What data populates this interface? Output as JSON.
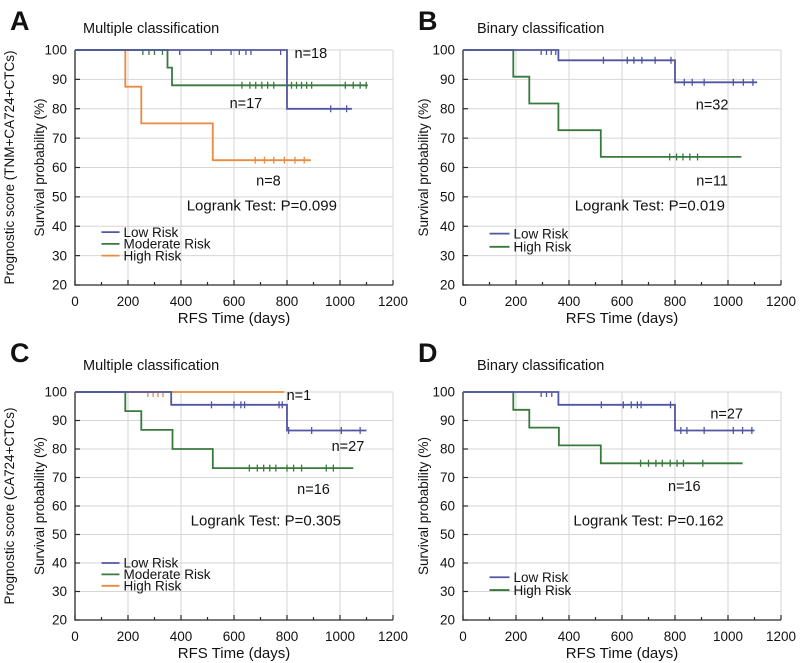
{
  "figure": {
    "background": "#ffffff",
    "colors": {
      "blue": "#5056a2",
      "green": "#38793c",
      "orange": "#e98b40",
      "grid": "#d6d6d6",
      "axis": "#2a2a2a",
      "text": "#121212"
    },
    "x_axis": {
      "label": "RFS Time (days)",
      "min": 0,
      "max": 1200,
      "major_tick_step": 200,
      "minor_tick_step": 100,
      "grid": true
    },
    "y_axis": {
      "label": "Survival probability (%)",
      "min": 20,
      "max": 100,
      "major_tick_step": 10,
      "grid": true
    }
  },
  "chart_data": [
    {
      "id": "A",
      "letter": "A",
      "title": "Multiple classification",
      "type": "km_step_line",
      "outer_ylabel": "Prognostic score (TNM+CA724+CTCs)",
      "logrank_label": "Logrank Test: P=0.099",
      "logrank_pos": [
        705,
        47
      ],
      "legend": {
        "x": 100,
        "rows_y": [
          38,
          34,
          30
        ]
      },
      "series": [
        {
          "name": "Low Risk",
          "color_key": "blue",
          "n_label": "n=18",
          "n_pos": [
            890,
            99
          ],
          "steps": [
            [
              0,
              100
            ],
            [
              800,
              100
            ],
            [
              800,
              80
            ],
            [
              1045,
              80
            ]
          ],
          "censors": [
            [
              395,
              100
            ],
            [
              514,
              100
            ],
            [
              589,
              100
            ],
            [
              620,
              100
            ],
            [
              645,
              100
            ],
            [
              664,
              100
            ],
            [
              776,
              100
            ],
            [
              965,
              80
            ],
            [
              1025,
              80
            ]
          ]
        },
        {
          "name": "Moderate Risk",
          "color_key": "green",
          "n_label": "n=17",
          "n_pos": [
            645,
            82
          ],
          "steps": [
            [
              0,
              100
            ],
            [
              349,
              100
            ],
            [
              349,
              94
            ],
            [
              366,
              94
            ],
            [
              366,
              88
            ],
            [
              1105,
              88
            ]
          ],
          "censors": [
            [
              256,
              100
            ],
            [
              279,
              100
            ],
            [
              300,
              100
            ],
            [
              330,
              100
            ],
            [
              630,
              88
            ],
            [
              660,
              88
            ],
            [
              682,
              88
            ],
            [
              705,
              88
            ],
            [
              727,
              88
            ],
            [
              750,
              88
            ],
            [
              817,
              88
            ],
            [
              836,
              88
            ],
            [
              855,
              88
            ],
            [
              874,
              88
            ],
            [
              893,
              88
            ],
            [
              1020,
              88
            ],
            [
              1050,
              88
            ],
            [
              1076,
              88
            ],
            [
              1099,
              88
            ]
          ]
        },
        {
          "name": "High Risk",
          "color_key": "orange",
          "n_label": "n=8",
          "n_pos": [
            730,
            55.5
          ],
          "steps": [
            [
              0,
              100
            ],
            [
              190,
              100
            ],
            [
              190,
              87.5
            ],
            [
              250,
              87.5
            ],
            [
              250,
              75
            ],
            [
              520,
              75
            ],
            [
              520,
              62.5
            ],
            [
              890,
              62.5
            ]
          ],
          "censors": [
            [
              680,
              62.5
            ],
            [
              715,
              62.5
            ],
            [
              750,
              62.5
            ],
            [
              790,
              62.5
            ],
            [
              830,
              62.5
            ],
            [
              865,
              62.5
            ]
          ]
        }
      ]
    },
    {
      "id": "B",
      "letter": "B",
      "title": "Binary classification",
      "type": "km_step_line",
      "logrank_label": "Logrank Test: P=0.019",
      "logrank_pos": [
        705,
        47
      ],
      "legend": {
        "x": 100,
        "rows_y": [
          37.5,
          33
        ]
      },
      "series": [
        {
          "name": "Low Risk",
          "color_key": "blue",
          "n_label": "n=32",
          "n_pos": [
            940,
            81.5
          ],
          "steps": [
            [
              0,
              100
            ],
            [
              360,
              100
            ],
            [
              360,
              96.5
            ],
            [
              800,
              96.5
            ],
            [
              800,
              89
            ],
            [
              1110,
              89
            ]
          ],
          "censors": [
            [
              295,
              100
            ],
            [
              315,
              100
            ],
            [
              333,
              100
            ],
            [
              350,
              100
            ],
            [
              530,
              96.5
            ],
            [
              620,
              96.5
            ],
            [
              645,
              96.5
            ],
            [
              675,
              96.5
            ],
            [
              725,
              96.5
            ],
            [
              785,
              96.5
            ],
            [
              835,
              89
            ],
            [
              865,
              89
            ],
            [
              910,
              89
            ],
            [
              1020,
              89
            ],
            [
              1058,
              89
            ],
            [
              1094,
              89
            ]
          ]
        },
        {
          "name": "High Risk",
          "color_key": "green",
          "n_label": "n=11",
          "n_pos": [
            940,
            55.5
          ],
          "steps": [
            [
              0,
              100
            ],
            [
              190,
              100
            ],
            [
              190,
              90.9
            ],
            [
              250,
              90.9
            ],
            [
              250,
              81.8
            ],
            [
              360,
              81.8
            ],
            [
              360,
              72.7
            ],
            [
              520,
              72.7
            ],
            [
              520,
              63.6
            ],
            [
              1050,
              63.6
            ]
          ],
          "censors": [
            [
              780,
              63.6
            ],
            [
              806,
              63.6
            ],
            [
              830,
              63.6
            ],
            [
              856,
              63.6
            ],
            [
              885,
              63.6
            ]
          ]
        }
      ]
    },
    {
      "id": "C",
      "letter": "C",
      "title": "Multiple classification",
      "type": "km_step_line",
      "outer_ylabel": "Prognostic score (CA724+CTCs)",
      "logrank_label": "Logrank Test: P=0.305",
      "logrank_pos": [
        720,
        55
      ],
      "legend": {
        "x": 100,
        "rows_y": [
          40,
          36,
          32
        ]
      },
      "series": [
        {
          "name": "Low Risk",
          "color_key": "blue",
          "n_label": "n=27",
          "n_pos": [
            1030,
            81
          ],
          "steps": [
            [
              0,
              100
            ],
            [
              363,
              100
            ],
            [
              363,
              95.5
            ],
            [
              800,
              95.5
            ],
            [
              800,
              86.5
            ],
            [
              1100,
              86.5
            ]
          ],
          "censors": [
            [
              515,
              95.5
            ],
            [
              600,
              95.5
            ],
            [
              626,
              95.5
            ],
            [
              640,
              95.5
            ],
            [
              770,
              95.5
            ],
            [
              782,
              95.5
            ],
            [
              806,
              86.5
            ],
            [
              893,
              86.5
            ],
            [
              1005,
              86.5
            ],
            [
              1076,
              86.5
            ]
          ]
        },
        {
          "name": "Moderate Risk",
          "color_key": "green",
          "n_label": "n=16",
          "n_pos": [
            900,
            66
          ],
          "steps": [
            [
              0,
              100
            ],
            [
              190,
              100
            ],
            [
              190,
              93.3
            ],
            [
              250,
              93.3
            ],
            [
              250,
              86.7
            ],
            [
              368,
              86.7
            ],
            [
              368,
              80
            ],
            [
              520,
              80
            ],
            [
              520,
              73.3
            ],
            [
              1050,
              73.3
            ]
          ],
          "censors": [
            [
              658,
              73.3
            ],
            [
              688,
              73.3
            ],
            [
              712,
              73.3
            ],
            [
              735,
              73.3
            ],
            [
              758,
              73.3
            ],
            [
              800,
              73.3
            ],
            [
              825,
              73.3
            ],
            [
              855,
              73.3
            ],
            [
              948,
              73.3
            ],
            [
              975,
              73.3
            ]
          ]
        },
        {
          "name": "High Risk",
          "color_key": "orange",
          "n_label": "n=1",
          "n_pos": [
            845,
            99
          ],
          "steps": [
            [
              0,
              100
            ],
            [
              790,
              100
            ]
          ],
          "censors": [
            [
              275,
              100
            ],
            [
              295,
              100
            ],
            [
              313,
              100
            ],
            [
              332,
              100
            ]
          ]
        }
      ]
    },
    {
      "id": "D",
      "letter": "D",
      "title": "Binary classification",
      "type": "km_step_line",
      "logrank_label": "Logrank Test: P=0.162",
      "logrank_pos": [
        700,
        55
      ],
      "legend": {
        "x": 100,
        "rows_y": [
          35,
          30.5
        ]
      },
      "series": [
        {
          "name": "Low Risk",
          "color_key": "blue",
          "n_label": "n=27",
          "n_pos": [
            995,
            92.5
          ],
          "steps": [
            [
              0,
              100
            ],
            [
              360,
              100
            ],
            [
              360,
              95.5
            ],
            [
              800,
              95.5
            ],
            [
              800,
              86.5
            ],
            [
              1100,
              86.5
            ]
          ],
          "censors": [
            [
              295,
              100
            ],
            [
              315,
              100
            ],
            [
              335,
              100
            ],
            [
              522,
              95.5
            ],
            [
              605,
              95.5
            ],
            [
              635,
              95.5
            ],
            [
              658,
              95.5
            ],
            [
              672,
              95.5
            ],
            [
              783,
              95.5
            ],
            [
              822,
              86.5
            ],
            [
              845,
              86.5
            ],
            [
              910,
              86.5
            ],
            [
              1020,
              86.5
            ],
            [
              1055,
              86.5
            ],
            [
              1090,
              86.5
            ]
          ]
        },
        {
          "name": "High Risk",
          "color_key": "green",
          "n_label": "n=16",
          "n_pos": [
            835,
            67
          ],
          "steps": [
            [
              0,
              100
            ],
            [
              190,
              100
            ],
            [
              190,
              93.75
            ],
            [
              250,
              93.75
            ],
            [
              250,
              87.5
            ],
            [
              362,
              87.5
            ],
            [
              362,
              81.25
            ],
            [
              520,
              81.25
            ],
            [
              520,
              75
            ],
            [
              1055,
              75
            ]
          ],
          "censors": [
            [
              670,
              75
            ],
            [
              700,
              75
            ],
            [
              728,
              75
            ],
            [
              752,
              75
            ],
            [
              782,
              75
            ],
            [
              808,
              75
            ],
            [
              832,
              75
            ],
            [
              905,
              75
            ]
          ]
        }
      ]
    }
  ]
}
